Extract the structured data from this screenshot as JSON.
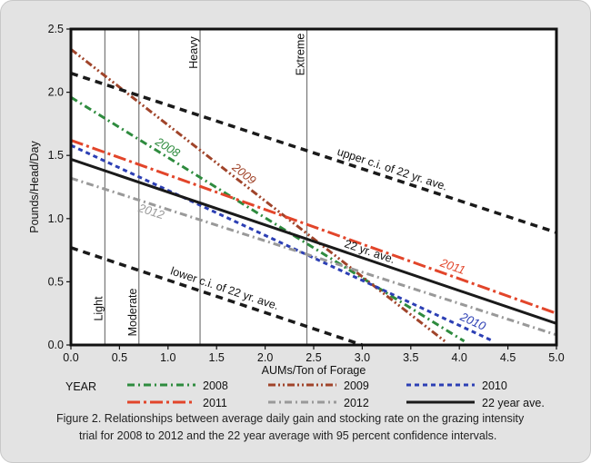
{
  "chart_data": {
    "type": "line",
    "xlabel": "AUMs/Ton of Forage",
    "ylabel": "Pounds/Head/Day",
    "xlim": [
      0,
      5
    ],
    "ylim": [
      0,
      2.5
    ],
    "x_ticks": [
      "0.0",
      "0.5",
      "1.0",
      "1.5",
      "2.0",
      "2.5",
      "3.0",
      "3.5",
      "4.0",
      "4.5",
      "5.0"
    ],
    "y_ticks": [
      "0.0",
      "0.5",
      "1.0",
      "1.5",
      "2.0",
      "2.5"
    ],
    "grid": false,
    "stocking_levels": [
      {
        "label": "Light",
        "x": 0.35
      },
      {
        "label": "Moderate",
        "x": 0.7
      },
      {
        "label": "Heavy",
        "x": 1.33
      },
      {
        "label": "Extreme",
        "x": 2.43
      }
    ],
    "series": [
      {
        "name": "2008",
        "color": "#2e8b3e",
        "dash": "dashdot",
        "x": [
          0.0,
          4.05
        ],
        "y": [
          1.96,
          0.03
        ],
        "label": "2008"
      },
      {
        "name": "2009",
        "color": "#a0442a",
        "dash": "dashdotdot",
        "x": [
          0.0,
          3.85
        ],
        "y": [
          2.34,
          0.03
        ],
        "label": "2009"
      },
      {
        "name": "2010",
        "color": "#2c3fb4",
        "dash": "dash",
        "x": [
          0.0,
          4.35
        ],
        "y": [
          1.58,
          0.03
        ],
        "label": "2010"
      },
      {
        "name": "2011",
        "color": "#e2452a",
        "dash": "longdashdot",
        "x": [
          0.0,
          5.0
        ],
        "y": [
          1.62,
          0.25
        ],
        "label": "2011"
      },
      {
        "name": "2012",
        "color": "#999999",
        "dash": "dashdot",
        "x": [
          0.0,
          5.0
        ],
        "y": [
          1.32,
          0.08
        ],
        "label": "2012"
      },
      {
        "name": "22 year ave.",
        "color": "#1a1a1a",
        "dash": "solid",
        "x": [
          0.0,
          5.0
        ],
        "y": [
          1.47,
          0.17
        ],
        "label": "22 yr. ave."
      },
      {
        "name": "upper c.i. of 22 yr. ave.",
        "color": "#1a1a1a",
        "dash": "bigdash",
        "x": [
          0.0,
          5.0
        ],
        "y": [
          2.15,
          0.89
        ],
        "label": "upper c.i. of 22 yr. ave."
      },
      {
        "name": "lower c.i. of 22 yr. ave.",
        "color": "#1a1a1a",
        "dash": "bigdash",
        "x": [
          0.0,
          3.0
        ],
        "y": [
          0.77,
          0.0
        ],
        "label": "lower c.i. of 22 yr. ave."
      }
    ],
    "legend": {
      "title": "YEAR",
      "placement": "bottom",
      "entries": [
        "2008",
        "2009",
        "2010",
        "2011",
        "2012",
        "22 year ave."
      ]
    },
    "caption_line1": "Figure 2. Relationships between average daily gain and stocking rate on the grazing intensity",
    "caption_line2": "trial for 2008 to 2012 and the 22 year average with 95 percent confidence intervals."
  }
}
